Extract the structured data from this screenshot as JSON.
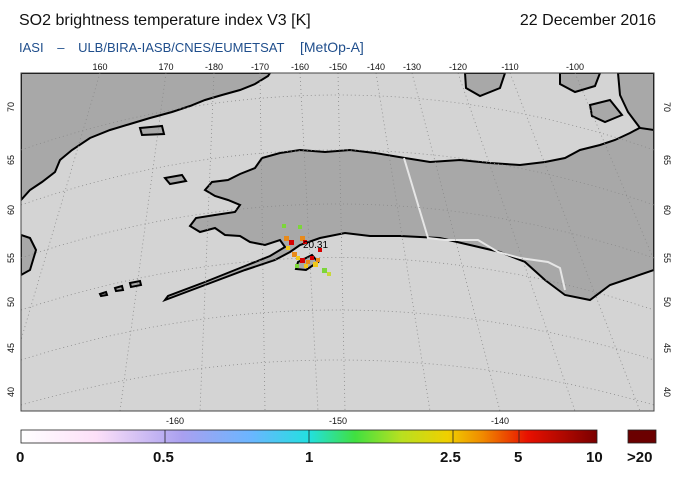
{
  "header": {
    "title": "SO2 brightness temperature index V3 [K]",
    "date": "22 December 2016",
    "instrument": "IASI",
    "separator": "–",
    "provider": "ULB/BIRA-IASB/CNES/EUMETSAT",
    "satellite": "[MetOp-A]"
  },
  "map": {
    "projection": "polar stereographic",
    "top_lon_labels": [
      "160",
      "170",
      "-180",
      "-170",
      "-160",
      "-150",
      "-140",
      "-130",
      "-120",
      "-110",
      "-100"
    ],
    "bottom_lon_labels": [
      "-160",
      "-150",
      "-140"
    ],
    "lat_labels": [
      "70",
      "65",
      "60",
      "55",
      "50",
      "45",
      "40"
    ],
    "annotation": "20.31",
    "colors": {
      "ocean": "#d4d4d4",
      "land": "#a8a8a8",
      "coast": "#000000",
      "border": "#e6e6e6",
      "grid": "#8a8a8a"
    }
  },
  "colorbar": {
    "labels": [
      "0",
      "0.5",
      "1",
      "2.5",
      "5",
      "10",
      ">20"
    ],
    "overflow_color": "#6b0000"
  }
}
